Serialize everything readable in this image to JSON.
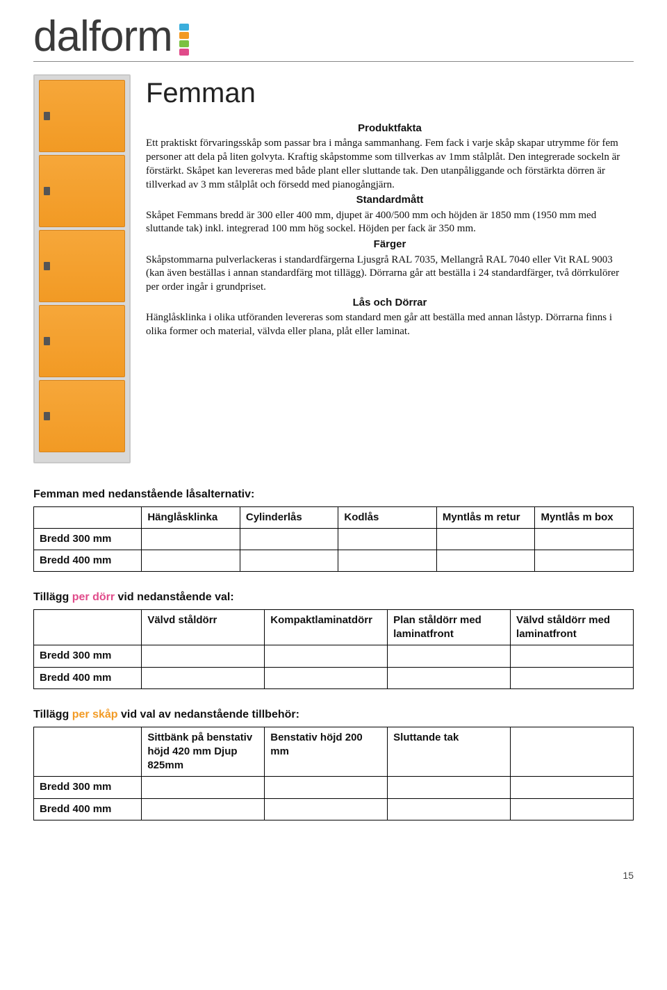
{
  "logo": {
    "text": "dalform",
    "bar_colors": [
      "#3baedc",
      "#f29a24",
      "#7cc142",
      "#e04b8a"
    ]
  },
  "product": {
    "title": "Femman",
    "door_color": "#f29a24",
    "cabinet_color": "#d8d8d8"
  },
  "headings": {
    "produktfakta": "Produktfakta",
    "standardmatt": "Standardmått",
    "farger": "Färger",
    "las": "Lås och Dörrar"
  },
  "accent_colors": {
    "per_dorr": "#e04b8a",
    "per_skap": "#f29a24"
  },
  "paragraphs": {
    "p1": "Ett praktiskt förvaringsskåp som passar bra i många sammanhang. Fem fack i varje skåp skapar utrymme för fem personer att dela på liten golvyta. Kraftig skåpstomme som tillverkas av 1mm stålplåt. Den integrerade sockeln är förstärkt. Skåpet kan levereras med både plant eller sluttande tak. Den utanpåliggande och förstärkta dörren är tillverkad av 3 mm stålplåt och försedd med pianogångjärn.",
    "p2": "Skåpet Femmans bredd är 300 eller 400 mm, djupet är 400/500 mm och höjden är 1850 mm (1950 mm med sluttande tak) inkl. integrerad 100 mm hög sockel. Höjden per fack är 350 mm.",
    "p3": "Skåpstommarna pulverlackeras i standardfärgerna Ljusgrå RAL 7035, Mellangrå RAL 7040 eller Vit RAL 9003 (kan även beställas i annan standardfärg mot tillägg). Dörrarna går att beställa i 24 standardfärger, två dörrkulörer per order ingår i grundpriset.",
    "p4": "Hänglåsklinka i olika utföranden levereras som standard men går att beställa med annan låstyp. Dörrarna finns i olika former och material, välvda eller plana, plåt eller laminat."
  },
  "section_titles": {
    "t1": "Femman med nedanstående låsalternativ:",
    "t2a": "Tillägg ",
    "t2b": "per dörr",
    "t2c": " vid nedanstående val:",
    "t3a": "Tillägg ",
    "t3b": "per skåp",
    "t3c": " vid val av nedanstående tillbehör:"
  },
  "table1": {
    "headers": [
      "Hänglåsklinka",
      "Cylinderlås",
      "Kodlås",
      "Myntlås m retur",
      "Myntlås m box"
    ],
    "rows": [
      "Bredd 300 mm",
      "Bredd 400 mm"
    ]
  },
  "table2": {
    "headers": [
      "Välvd ståldörr",
      "Kompaktlaminatdörr",
      "Plan ståldörr  med laminatfront",
      "Välvd ståldörr med laminatfront"
    ],
    "rows": [
      "Bredd 300 mm",
      "Bredd 400 mm"
    ]
  },
  "table3": {
    "headers": [
      "Sittbänk på benstativ höjd 420 mm Djup 825mm",
      "Benstativ höjd 200 mm",
      "Sluttande tak",
      ""
    ],
    "rows": [
      "Bredd 300 mm",
      "Bredd 400 mm"
    ]
  },
  "page_number": "15"
}
